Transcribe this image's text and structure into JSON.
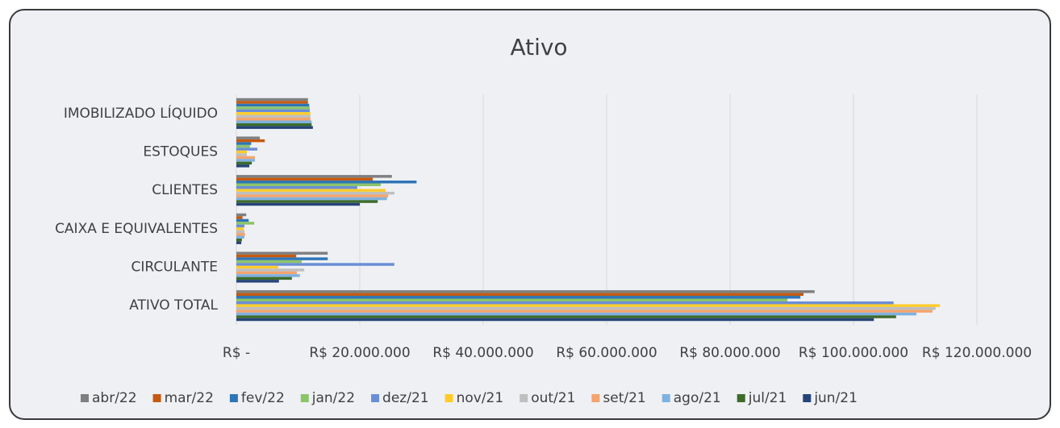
{
  "chart_data": {
    "type": "hbar",
    "title": "Ativo",
    "categories": [
      "IMOBILIZADO LÍQUIDO",
      "ESTOQUES",
      "CLIENTES",
      "CAIXA E EQUIVALENTES",
      "CIRCULANTE",
      "ATIVO TOTAL"
    ],
    "series": [
      {
        "name": "abr/22",
        "color": "#7f7f7f",
        "values": [
          11600000,
          3800000,
          25200000,
          1600000,
          14800000,
          93700000
        ]
      },
      {
        "name": "mar/22",
        "color": "#c55a11",
        "values": [
          11600000,
          4600000,
          22100000,
          1000000,
          9700000,
          91900000
        ]
      },
      {
        "name": "fev/22",
        "color": "#2e75b6",
        "values": [
          11800000,
          2400000,
          29200000,
          2000000,
          14800000,
          91400000
        ]
      },
      {
        "name": "jan/22",
        "color": "#8cc46a",
        "values": [
          11900000,
          2200000,
          23400000,
          2900000,
          10600000,
          89300000
        ]
      },
      {
        "name": "dez/21",
        "color": "#6a8ed6",
        "values": [
          11900000,
          3400000,
          19600000,
          1300000,
          25600000,
          106500000
        ]
      },
      {
        "name": "nov/21",
        "color": "#ffcc29",
        "values": [
          12000000,
          1700000,
          24200000,
          1200000,
          6800000,
          114000000
        ]
      },
      {
        "name": "out/21",
        "color": "#bfbfbf",
        "values": [
          12000000,
          1700000,
          25600000,
          1300000,
          11000000,
          113300000
        ]
      },
      {
        "name": "set/21",
        "color": "#f4a46e",
        "values": [
          12000000,
          3000000,
          24600000,
          1400000,
          9800000,
          112800000
        ]
      },
      {
        "name": "ago/21",
        "color": "#7fb1e0",
        "values": [
          12200000,
          3000000,
          24400000,
          1300000,
          10300000,
          110200000
        ]
      },
      {
        "name": "jul/21",
        "color": "#3d6b2c",
        "values": [
          12200000,
          2500000,
          22900000,
          900000,
          9000000,
          106900000
        ]
      },
      {
        "name": "jun/21",
        "color": "#264478",
        "values": [
          12400000,
          2100000,
          20000000,
          800000,
          6900000,
          103300000
        ]
      }
    ],
    "xlim": [
      0,
      120000000
    ],
    "xticks": [
      {
        "value": 0,
        "label": "R$ -"
      },
      {
        "value": 20000000,
        "label": "R$ 20.000.000"
      },
      {
        "value": 40000000,
        "label": "R$ 40.000.000"
      },
      {
        "value": 60000000,
        "label": "R$ 60.000.000"
      },
      {
        "value": 80000000,
        "label": "R$ 80.000.000"
      },
      {
        "value": 100000000,
        "label": "R$ 100.000.000"
      },
      {
        "value": 120000000,
        "label": "R$ 120.000.000"
      }
    ],
    "grid": true,
    "legend": "bottom"
  }
}
